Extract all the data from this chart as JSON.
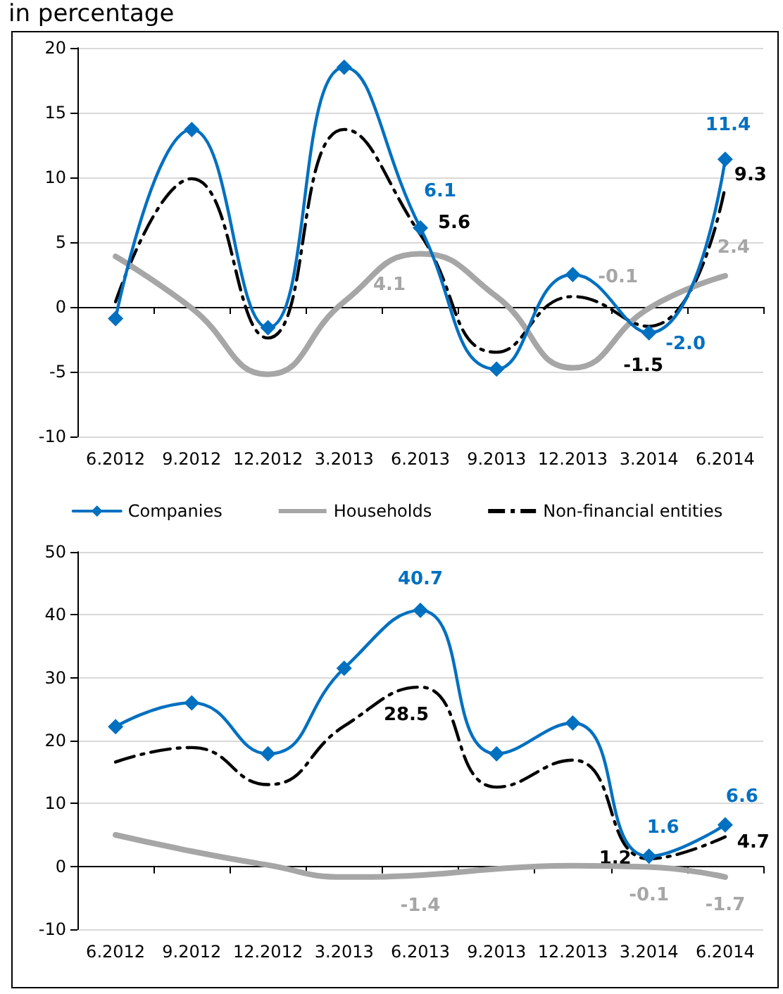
{
  "chart_data": [
    {
      "type": "line",
      "title": "in percentage",
      "categories": [
        "6.2012",
        "9.2012",
        "12.2012",
        "3.2013",
        "6.2013",
        "9.2013",
        "12.2013",
        "3.2014",
        "6.2014"
      ],
      "ylim": [
        -10,
        20
      ],
      "yticks": [
        -10,
        -5,
        0,
        5,
        10,
        15,
        20
      ],
      "grid": "y",
      "legend": "bottom",
      "series": [
        {
          "name": "Companies",
          "color": "#0070c0",
          "marker": "diamond",
          "line_style": "solid",
          "values": [
            -0.9,
            13.7,
            -1.6,
            18.5,
            6.1,
            -4.8,
            2.5,
            -2.0,
            11.4
          ],
          "value_labels": [
            null,
            null,
            null,
            null,
            "6.1",
            null,
            null,
            "-2.0",
            "11.4"
          ]
        },
        {
          "name": "Households",
          "color": "#a6a6a6",
          "marker": "none",
          "line_style": "solid",
          "values": [
            3.9,
            -0.1,
            -5.2,
            0.4,
            4.1,
            0.8,
            -4.7,
            -0.1,
            2.4
          ],
          "value_labels": [
            null,
            null,
            null,
            null,
            "4.1",
            null,
            null,
            "-0.1",
            "2.4"
          ]
        },
        {
          "name": "Non-financial entities",
          "color": "#000000",
          "marker": "none",
          "line_style": "dashed",
          "values": [
            0.4,
            9.9,
            -2.4,
            13.7,
            5.6,
            -3.5,
            0.8,
            -1.5,
            9.3
          ],
          "value_labels": [
            null,
            null,
            null,
            null,
            "5.6",
            null,
            null,
            "-1.5",
            "9.3"
          ]
        }
      ]
    },
    {
      "type": "line",
      "categories": [
        "6.2012",
        "9.2012",
        "12.2012",
        "3.2013",
        "6.2013",
        "9.2013",
        "12.2013",
        "3.2014",
        "6.2014"
      ],
      "ylim": [
        -10,
        50
      ],
      "yticks": [
        -10,
        0,
        10,
        20,
        30,
        40,
        50
      ],
      "grid": "y",
      "series": [
        {
          "color": "#0070c0",
          "marker": "diamond",
          "line_style": "solid",
          "values": [
            22.2,
            26.0,
            17.9,
            31.5,
            40.7,
            17.9,
            22.8,
            1.6,
            6.6
          ],
          "value_labels": [
            null,
            null,
            null,
            null,
            "40.7",
            null,
            null,
            "1.6",
            "6.6"
          ]
        },
        {
          "color": "#a6a6a6",
          "marker": "none",
          "line_style": "solid",
          "values": [
            5.0,
            2.4,
            0.2,
            -1.7,
            -1.4,
            -0.4,
            0.1,
            -0.1,
            -1.7
          ],
          "value_labels": [
            null,
            null,
            null,
            null,
            "-1.4",
            null,
            null,
            "-0.1",
            "-1.7"
          ]
        },
        {
          "color": "#000000",
          "marker": "none",
          "line_style": "dashed",
          "values": [
            16.6,
            18.9,
            13.0,
            22.3,
            28.5,
            12.6,
            16.9,
            1.2,
            4.7
          ],
          "value_labels": [
            null,
            null,
            null,
            null,
            "28.5",
            null,
            null,
            "1.2",
            "4.7"
          ]
        }
      ]
    }
  ]
}
